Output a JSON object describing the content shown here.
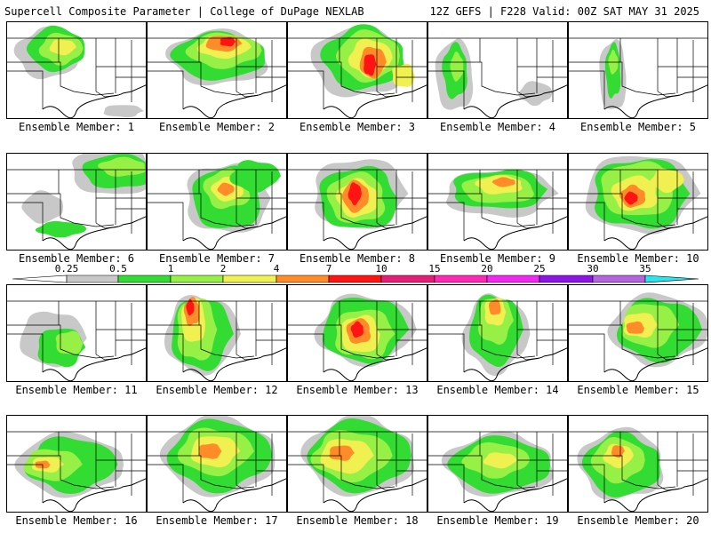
{
  "header": {
    "title_left": "Supercell Composite Parameter | College of DuPage NEXLAB",
    "title_right": "12Z GEFS | F228 Valid: 00Z SAT MAY 31 2025"
  },
  "colorbar": {
    "levels": [
      "0.25",
      "0.5",
      "1",
      "2",
      "4",
      "7",
      "10",
      "15",
      "20",
      "25",
      "30",
      "35"
    ],
    "colors": [
      "#c8c8c8",
      "#32dc32",
      "#96f046",
      "#f0f050",
      "#ff8c28",
      "#ff1414",
      "#e61e78",
      "#ff28b4",
      "#f028f0",
      "#8c14e6",
      "#b464dc",
      "#28e6f0"
    ]
  },
  "panels": [
    {
      "label": "Ensemble Member: 1"
    },
    {
      "label": "Ensemble Member: 2"
    },
    {
      "label": "Ensemble Member: 3"
    },
    {
      "label": "Ensemble Member: 4"
    },
    {
      "label": "Ensemble Member: 5"
    },
    {
      "label": "Ensemble Member: 6"
    },
    {
      "label": "Ensemble Member: 7"
    },
    {
      "label": "Ensemble Member: 8"
    },
    {
      "label": "Ensemble Member: 9"
    },
    {
      "label": "Ensemble Member: 10"
    },
    {
      "label": "Ensemble Member: 11"
    },
    {
      "label": "Ensemble Member: 12"
    },
    {
      "label": "Ensemble Member: 13"
    },
    {
      "label": "Ensemble Member: 14"
    },
    {
      "label": "Ensemble Member: 15"
    },
    {
      "label": "Ensemble Member: 16"
    },
    {
      "label": "Ensemble Member: 17"
    },
    {
      "label": "Ensemble Member: 18"
    },
    {
      "label": "Ensemble Member: 19"
    },
    {
      "label": "Ensemble Member: 20"
    }
  ]
}
